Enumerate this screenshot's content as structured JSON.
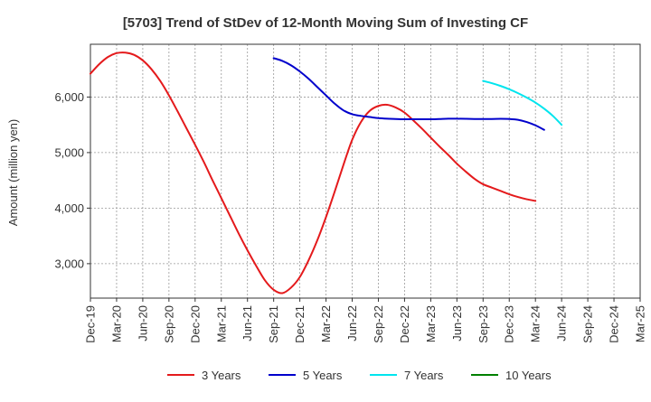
{
  "chart_data": {
    "type": "line",
    "title": "[5703]  Trend of StDev of 12-Month Moving Sum of Investing CF",
    "ylabel": "Amount (million yen)",
    "xlabel": "",
    "x_ticks": [
      "Dec-19",
      "Mar-20",
      "Jun-20",
      "Sep-20",
      "Dec-20",
      "Mar-21",
      "Jun-21",
      "Sep-21",
      "Dec-21",
      "Mar-22",
      "Jun-22",
      "Sep-22",
      "Dec-22",
      "Mar-23",
      "Jun-23",
      "Sep-23",
      "Dec-23",
      "Mar-24",
      "Jun-24",
      "Sep-24",
      "Dec-24",
      "Mar-25"
    ],
    "y_ticks": [
      3000,
      4000,
      5000,
      6000
    ],
    "y_tick_labels": [
      "3,000",
      "4,000",
      "5,000",
      "6,000"
    ],
    "ylim": [
      2380,
      6950
    ],
    "grid": true,
    "legend_position": "bottom",
    "series": [
      {
        "name": "3 Years",
        "color": "#e41a1c",
        "start_index": 0,
        "values": [
          6420,
          6590,
          6720,
          6790,
          6800,
          6760,
          6660,
          6500,
          6290,
          6030,
          5740,
          5440,
          5140,
          4830,
          4500,
          4180,
          3860,
          3540,
          3240,
          2960,
          2700,
          2530,
          2470,
          2570,
          2760,
          3060,
          3420,
          3840,
          4300,
          4780,
          5230,
          5550,
          5750,
          5840,
          5860,
          5810,
          5720,
          5580,
          5430,
          5270,
          5110,
          4960,
          4800,
          4660,
          4530,
          4430,
          4370,
          4310,
          4250,
          4200,
          4160,
          4130
        ]
      },
      {
        "name": "5 Years",
        "color": "#0000cc",
        "start_index": 21,
        "values": [
          6700,
          6650,
          6570,
          6460,
          6330,
          6180,
          6030,
          5880,
          5760,
          5690,
          5660,
          5640,
          5620,
          5610,
          5605,
          5600,
          5600,
          5600,
          5600,
          5605,
          5610,
          5610,
          5608,
          5605,
          5605,
          5605,
          5608,
          5605,
          5590,
          5550,
          5490,
          5410
        ]
      },
      {
        "name": "7 Years",
        "color": "#00e5ee",
        "start_index": 45,
        "values": [
          6290,
          6250,
          6200,
          6140,
          6070,
          5990,
          5900,
          5790,
          5660,
          5500
        ]
      },
      {
        "name": "10 Years",
        "color": "#008000",
        "start_index": 0,
        "values": []
      }
    ]
  }
}
